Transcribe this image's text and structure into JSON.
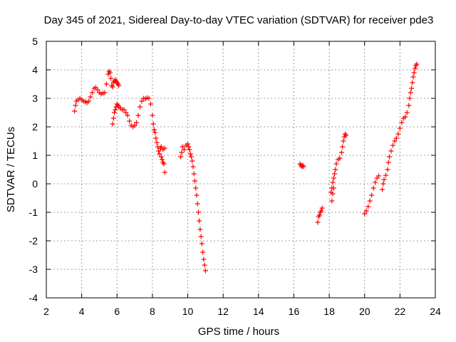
{
  "chart_data": {
    "type": "scatter",
    "title": "Day 345 of 2021, Sidereal Day-to-day VTEC variation (SDTVAR) for receiver pde3",
    "xlabel": "GPS time / hours",
    "ylabel": "SDTVAR / TECUs",
    "xlim": [
      2,
      24
    ],
    "ylim": [
      -4,
      5
    ],
    "xticks": [
      "2",
      "4",
      "6",
      "8",
      "10",
      "12",
      "14",
      "16",
      "18",
      "20",
      "22",
      "24"
    ],
    "yticks": [
      "-4",
      "-3",
      "-2",
      "-1",
      "0",
      "1",
      "2",
      "3",
      "4",
      "5"
    ],
    "grid": true,
    "marker": "+",
    "color": "#ff0000",
    "series": [
      {
        "name": "SDTVAR",
        "segments": [
          [
            [
              3.6,
              2.55
            ],
            [
              3.65,
              2.75
            ],
            [
              3.7,
              2.9
            ],
            [
              3.8,
              2.95
            ],
            [
              3.9,
              3.0
            ],
            [
              4.0,
              2.95
            ],
            [
              4.1,
              2.9
            ],
            [
              4.2,
              2.88
            ],
            [
              4.3,
              2.85
            ],
            [
              4.4,
              2.9
            ],
            [
              4.5,
              3.05
            ],
            [
              4.6,
              3.2
            ],
            [
              4.7,
              3.35
            ],
            [
              4.8,
              3.38
            ],
            [
              4.9,
              3.3
            ],
            [
              5.0,
              3.2
            ],
            [
              5.1,
              3.15
            ],
            [
              5.2,
              3.18
            ],
            [
              5.3,
              3.2
            ],
            [
              5.4,
              3.5
            ],
            [
              5.5,
              3.85
            ],
            [
              5.55,
              3.95
            ],
            [
              5.6,
              3.9
            ],
            [
              5.65,
              3.7
            ],
            [
              5.7,
              3.45
            ],
            [
              5.75,
              3.4
            ],
            [
              5.8,
              3.55
            ],
            [
              5.85,
              3.6
            ],
            [
              5.9,
              3.65
            ],
            [
              5.95,
              3.6
            ],
            [
              6.0,
              3.55
            ],
            [
              6.05,
              3.5
            ],
            [
              6.1,
              3.45
            ]
          ],
          [
            [
              5.75,
              2.1
            ],
            [
              5.8,
              2.3
            ],
            [
              5.85,
              2.5
            ],
            [
              5.9,
              2.6
            ],
            [
              5.95,
              2.7
            ],
            [
              6.0,
              2.8
            ],
            [
              6.05,
              2.75
            ],
            [
              6.1,
              2.7
            ],
            [
              6.2,
              2.65
            ],
            [
              6.3,
              2.6
            ],
            [
              6.4,
              2.6
            ],
            [
              6.5,
              2.5
            ],
            [
              6.6,
              2.4
            ],
            [
              6.7,
              2.2
            ],
            [
              6.8,
              2.05
            ],
            [
              6.9,
              2.0
            ],
            [
              7.0,
              2.05
            ],
            [
              7.1,
              2.15
            ],
            [
              7.2,
              2.4
            ],
            [
              7.3,
              2.7
            ],
            [
              7.4,
              2.9
            ],
            [
              7.5,
              3.0
            ],
            [
              7.6,
              2.98
            ],
            [
              7.7,
              3.02
            ],
            [
              7.8,
              3.0
            ],
            [
              7.9,
              2.8
            ],
            [
              8.0,
              2.4
            ],
            [
              8.05,
              2.1
            ],
            [
              8.1,
              1.9
            ],
            [
              8.15,
              1.8
            ],
            [
              8.2,
              1.6
            ],
            [
              8.25,
              1.45
            ],
            [
              8.3,
              1.3
            ],
            [
              8.35,
              1.15
            ],
            [
              8.4,
              1.05
            ],
            [
              8.5,
              0.95
            ],
            [
              8.55,
              0.85
            ],
            [
              8.6,
              0.75
            ],
            [
              8.65,
              0.7
            ],
            [
              8.7,
              0.4
            ]
          ],
          [
            [
              8.45,
              1.25
            ],
            [
              8.5,
              1.3
            ],
            [
              8.6,
              1.2
            ],
            [
              8.7,
              1.25
            ]
          ],
          [
            [
              9.6,
              0.95
            ],
            [
              9.65,
              1.1
            ],
            [
              9.7,
              1.3
            ],
            [
              9.8,
              1.2
            ],
            [
              9.9,
              1.35
            ],
            [
              10.0,
              1.4
            ],
            [
              10.05,
              1.3
            ],
            [
              10.1,
              1.2
            ],
            [
              10.15,
              1.05
            ],
            [
              10.2,
              0.95
            ],
            [
              10.25,
              0.8
            ],
            [
              10.3,
              0.6
            ],
            [
              10.35,
              0.35
            ],
            [
              10.4,
              0.1
            ],
            [
              10.45,
              -0.15
            ],
            [
              10.5,
              -0.4
            ],
            [
              10.55,
              -0.7
            ],
            [
              10.6,
              -1.0
            ],
            [
              10.65,
              -1.3
            ],
            [
              10.7,
              -1.6
            ],
            [
              10.75,
              -1.85
            ],
            [
              10.8,
              -2.1
            ],
            [
              10.85,
              -2.4
            ],
            [
              10.9,
              -2.65
            ],
            [
              10.95,
              -2.85
            ],
            [
              11.0,
              -3.05
            ]
          ],
          [
            [
              16.35,
              0.7
            ],
            [
              16.4,
              0.65
            ],
            [
              16.45,
              0.6
            ],
            [
              16.5,
              0.65
            ],
            [
              16.55,
              0.6
            ]
          ],
          [
            [
              17.35,
              -1.35
            ],
            [
              17.4,
              -1.15
            ],
            [
              17.45,
              -1.1
            ],
            [
              17.5,
              -1.0
            ],
            [
              17.55,
              -0.95
            ],
            [
              17.6,
              -0.85
            ]
          ],
          [
            [
              18.1,
              -0.3
            ],
            [
              18.15,
              -0.15
            ],
            [
              18.2,
              0.05
            ],
            [
              18.25,
              0.2
            ],
            [
              18.3,
              0.35
            ],
            [
              18.35,
              0.5
            ],
            [
              18.4,
              0.7
            ],
            [
              18.5,
              0.85
            ],
            [
              18.6,
              0.9
            ],
            [
              18.7,
              1.1
            ],
            [
              18.75,
              1.3
            ],
            [
              18.8,
              1.5
            ],
            [
              18.85,
              1.65
            ],
            [
              18.9,
              1.75
            ],
            [
              18.95,
              1.7
            ]
          ],
          [
            [
              18.15,
              -0.6
            ],
            [
              18.2,
              -0.35
            ],
            [
              18.25,
              -0.15
            ]
          ],
          [
            [
              20.0,
              -1.05
            ],
            [
              20.1,
              -0.95
            ],
            [
              20.2,
              -0.8
            ],
            [
              20.3,
              -0.6
            ],
            [
              20.4,
              -0.4
            ],
            [
              20.5,
              -0.15
            ],
            [
              20.6,
              0.05
            ],
            [
              20.7,
              0.2
            ],
            [
              20.8,
              0.28
            ]
          ],
          [
            [
              21.0,
              -0.2
            ],
            [
              21.05,
              0.0
            ],
            [
              21.1,
              0.15
            ],
            [
              21.2,
              0.3
            ],
            [
              21.3,
              0.5
            ],
            [
              21.35,
              0.75
            ],
            [
              21.4,
              0.95
            ],
            [
              21.5,
              1.15
            ],
            [
              21.6,
              1.35
            ],
            [
              21.7,
              1.5
            ],
            [
              21.8,
              1.6
            ],
            [
              21.9,
              1.75
            ],
            [
              22.0,
              1.95
            ],
            [
              22.1,
              2.15
            ],
            [
              22.2,
              2.3
            ],
            [
              22.3,
              2.35
            ],
            [
              22.4,
              2.5
            ],
            [
              22.5,
              2.75
            ],
            [
              22.55,
              3.0
            ],
            [
              22.6,
              3.2
            ],
            [
              22.65,
              3.35
            ],
            [
              22.7,
              3.55
            ],
            [
              22.75,
              3.75
            ],
            [
              22.8,
              3.9
            ],
            [
              22.85,
              4.05
            ],
            [
              22.9,
              4.15
            ],
            [
              22.95,
              4.2
            ]
          ]
        ]
      }
    ]
  }
}
